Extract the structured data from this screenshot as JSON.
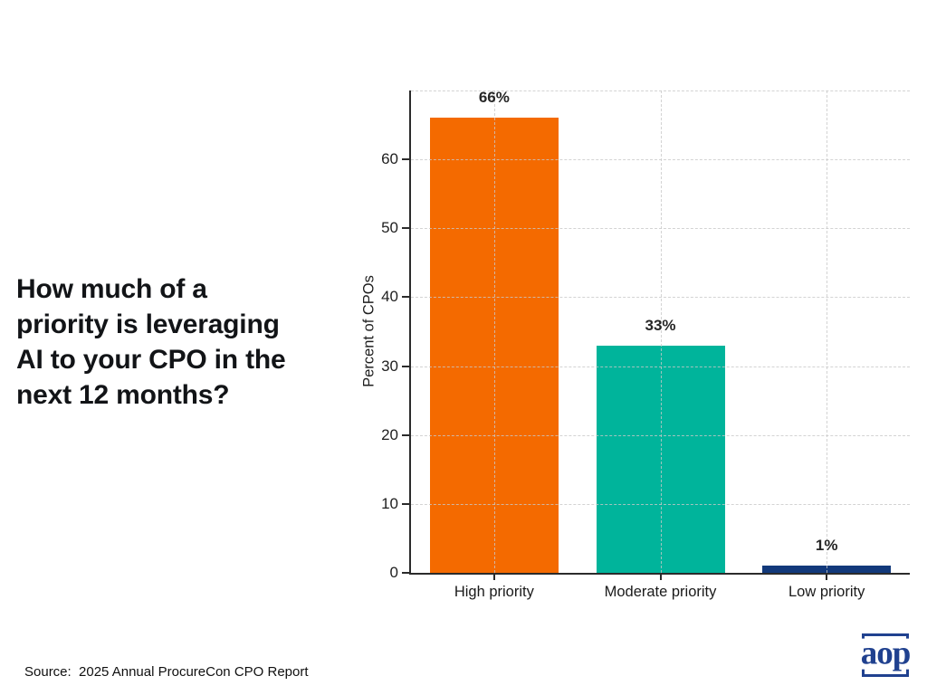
{
  "title": "How much of a\npriority is leveraging\nAI to your CPO in the\nnext 12 months?",
  "source": "Source:  2025 Annual ProcureCon CPO Report",
  "logo": {
    "text": "aop",
    "color": "#20418F"
  },
  "chart_data": {
    "type": "bar",
    "categories": [
      "High priority",
      "Moderate priority",
      "Low priority"
    ],
    "values": [
      66,
      33,
      1
    ],
    "bar_labels": [
      "66%",
      "33%",
      "1%"
    ],
    "bar_colors": [
      "#F46A00",
      "#00B49B",
      "#12397B"
    ],
    "title": "",
    "xlabel": "",
    "ylabel": "Percent of CPOs",
    "ylim": [
      0,
      70
    ],
    "yticks": [
      0,
      10,
      20,
      30,
      40,
      50,
      60
    ],
    "grid": "dashed horizontal and vertical at bar centers",
    "legend": "none"
  }
}
